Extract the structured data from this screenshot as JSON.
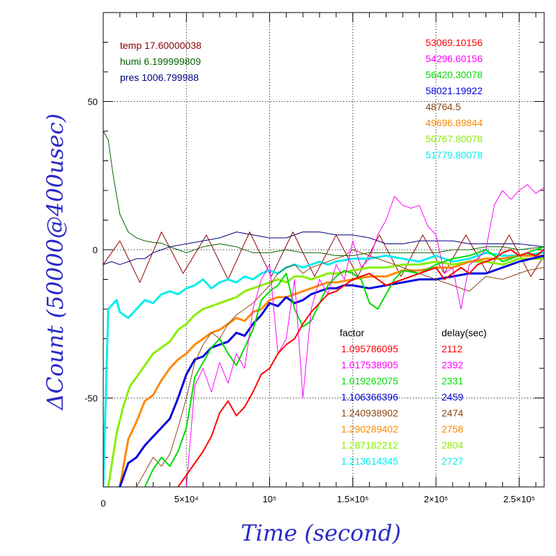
{
  "chart_data": {
    "type": "line",
    "xlabel": "Time (second)",
    "ylabel": "ΔCount (50000@400usec)",
    "xlim": [
      0,
      265000
    ],
    "ylim": [
      -80,
      80
    ],
    "grid": true,
    "x_ticks": [
      {
        "value": 0,
        "label": "0"
      },
      {
        "value": 50000,
        "label": "5×10⁴"
      },
      {
        "value": 100000,
        "label": "10⁵"
      },
      {
        "value": 150000,
        "label": "1.5×10⁵"
      },
      {
        "value": 200000,
        "label": "2×10⁵"
      },
      {
        "value": 250000,
        "label": "2.5×10⁵"
      }
    ],
    "y_ticks": [
      {
        "value": -50,
        "label": "-50"
      },
      {
        "value": 0,
        "label": "0"
      },
      {
        "value": 50,
        "label": "50"
      }
    ],
    "env_legend": [
      {
        "label": "temp 17.60000038",
        "color": "#8b0000"
      },
      {
        "label": "humi 6.199999809",
        "color": "#006400"
      },
      {
        "label": "pres 1006.799988",
        "color": "#000080"
      }
    ],
    "series_legend": [
      {
        "label": "53069.10156",
        "color": "#ff0000"
      },
      {
        "label": "54296.60156",
        "color": "#ff00ff"
      },
      {
        "label": "56420.30078",
        "color": "#00dd00"
      },
      {
        "label": "58021.19922",
        "color": "#0000dd"
      },
      {
        "label": "48764.5",
        "color": "#8b4513"
      },
      {
        "label": "49696.89844",
        "color": "#ff8800"
      },
      {
        "label": "50767.80078",
        "color": "#88ee00"
      },
      {
        "label": "51779.80078",
        "color": "#00eeee"
      }
    ],
    "table_headers": {
      "factor": "factor",
      "delay": "delay(sec)"
    },
    "table_rows": [
      {
        "factor": "1.095786095",
        "delay": "2112",
        "color": "#ff0000"
      },
      {
        "factor": "1.017538905",
        "delay": "2392",
        "color": "#ff00ff"
      },
      {
        "factor": "1.019262075",
        "delay": "2331",
        "color": "#00dd00"
      },
      {
        "factor": "1.106366396",
        "delay": "2459",
        "color": "#0000dd"
      },
      {
        "factor": "1.240938902",
        "delay": "2474",
        "color": "#8b4513"
      },
      {
        "factor": "1.290289402",
        "delay": "2758",
        "color": "#ff8800"
      },
      {
        "factor": "1.287182212",
        "delay": "2804",
        "color": "#88ee00"
      },
      {
        "factor": "1.213614345",
        "delay": "2727",
        "color": "#00eeee"
      }
    ],
    "series": [
      {
        "color": "#006400",
        "width": 1,
        "x": [
          0,
          3000,
          6000,
          10000,
          15000,
          20000,
          25000,
          30000,
          35000,
          40000,
          50000,
          60000,
          70000,
          80000,
          90000,
          100000,
          110000,
          120000,
          130000,
          140000,
          150000,
          160000,
          170000,
          180000,
          190000,
          200000,
          210000,
          220000,
          230000,
          240000,
          250000,
          265000
        ],
        "y": [
          40,
          37,
          25,
          12,
          6,
          4,
          3,
          2.5,
          2.2,
          1,
          -1,
          1,
          2,
          1,
          -1,
          -1,
          0,
          -1,
          -1,
          -2,
          -2,
          -1,
          -1,
          -1,
          -1,
          -1,
          0,
          0,
          1,
          1,
          0,
          1
        ]
      },
      {
        "color": "#000080",
        "width": 1,
        "x": [
          0,
          5000,
          10000,
          15000,
          20000,
          25000,
          30000,
          35000,
          40000,
          50000,
          60000,
          70000,
          80000,
          90000,
          100000,
          110000,
          120000,
          130000,
          140000,
          150000,
          160000,
          170000,
          180000,
          190000,
          200000,
          210000,
          220000,
          230000,
          240000,
          250000,
          265000
        ],
        "y": [
          -5,
          -4,
          -5,
          -4,
          -3,
          -3,
          -1,
          0,
          1,
          2,
          3,
          4,
          6,
          5,
          4,
          4,
          6,
          6,
          5,
          5,
          4,
          2,
          2,
          3,
          3,
          3,
          2,
          2,
          2,
          2,
          1
        ]
      },
      {
        "color": "#8b0000",
        "width": 1,
        "x": [
          0,
          10000,
          22000,
          35000,
          48000,
          62000,
          75000,
          88000,
          101000,
          114000,
          127000,
          140000,
          153000,
          166000,
          179000,
          192000,
          205000,
          218000,
          231000,
          244000,
          257000,
          265000
        ],
        "y": [
          -5,
          3,
          -11,
          6,
          -8,
          5,
          -10,
          6,
          -9,
          6,
          -9,
          5,
          -9,
          5,
          -9,
          5,
          -8,
          5,
          -8,
          5,
          -9,
          -2
        ]
      },
      {
        "color": "#00eeee",
        "width": 3,
        "x": [
          0,
          3000,
          8000,
          10000,
          15000,
          20000,
          25000,
          30000,
          35000,
          40000,
          45000,
          50000,
          55000,
          60000,
          65000,
          70000,
          75000,
          80000,
          85000,
          90000,
          95000,
          100000,
          105000,
          110000,
          115000,
          120000,
          125000,
          130000,
          135000,
          140000,
          150000,
          160000,
          170000,
          180000,
          190000,
          200000,
          210000,
          220000,
          230000,
          240000,
          250000,
          265000
        ],
        "y": [
          -80,
          -20,
          -17,
          -21,
          -23,
          -20,
          -17,
          -18,
          -15,
          -14,
          -15,
          -13,
          -12,
          -10,
          -13,
          -11,
          -10,
          -11,
          -9,
          -10,
          -8,
          -7,
          -8,
          -6,
          -5,
          -6,
          -5,
          -4,
          -5,
          -4,
          -3,
          -3,
          -2,
          -3,
          -4,
          -2,
          -4,
          -3,
          -1,
          -2,
          -2,
          -1
        ]
      },
      {
        "color": "#88ee00",
        "width": 3,
        "x": [
          3000,
          8000,
          12000,
          16000,
          20000,
          25000,
          30000,
          35000,
          40000,
          45000,
          50000,
          55000,
          60000,
          65000,
          70000,
          75000,
          80000,
          85000,
          90000,
          95000,
          100000,
          105000,
          110000,
          115000,
          120000,
          125000,
          130000,
          135000,
          140000,
          150000,
          160000,
          170000,
          180000,
          190000,
          200000,
          210000,
          220000,
          230000,
          240000,
          250000,
          265000
        ],
        "y": [
          -80,
          -62,
          -53,
          -46,
          -43,
          -39,
          -35,
          -33,
          -31,
          -27,
          -25,
          -22,
          -20,
          -19,
          -18,
          -17,
          -16,
          -14,
          -13,
          -12,
          -11,
          -10,
          -11,
          -9,
          -9,
          -10,
          -9,
          -8,
          -8,
          -7,
          -6,
          -6,
          -5,
          -5,
          -4,
          -5,
          -4,
          -4,
          -5,
          -3,
          -3
        ]
      },
      {
        "color": "#ff8800",
        "width": 3,
        "x": [
          10000,
          15000,
          20000,
          25000,
          30000,
          35000,
          40000,
          45000,
          50000,
          55000,
          60000,
          65000,
          70000,
          75000,
          80000,
          85000,
          90000,
          95000,
          100000,
          105000,
          110000,
          115000,
          120000,
          125000,
          130000,
          135000,
          140000,
          150000,
          160000,
          170000,
          180000,
          190000,
          200000,
          210000,
          220000,
          230000,
          240000,
          250000,
          265000
        ],
        "y": [
          -80,
          -64,
          -58,
          -51,
          -49,
          -44,
          -40,
          -37,
          -35,
          -32,
          -30,
          -28,
          -27,
          -25,
          -23,
          -24,
          -21,
          -20,
          -17,
          -16,
          -16,
          -15,
          -14,
          -13,
          -12,
          -11,
          -11,
          -10,
          -9,
          -9,
          -7,
          -7,
          -6,
          -6,
          -4,
          -3,
          -3,
          -2,
          -2
        ]
      },
      {
        "color": "#0000dd",
        "width": 3,
        "x": [
          10000,
          15000,
          20000,
          25000,
          30000,
          35000,
          40000,
          45000,
          50000,
          55000,
          60000,
          65000,
          70000,
          75000,
          80000,
          85000,
          90000,
          95000,
          100000,
          105000,
          110000,
          115000,
          120000,
          125000,
          130000,
          135000,
          140000,
          145000,
          150000,
          160000,
          170000,
          180000,
          190000,
          200000,
          210000,
          220000,
          230000,
          240000,
          250000,
          265000
        ],
        "y": [
          -80,
          -72,
          -70,
          -66,
          -63,
          -60,
          -57,
          -50,
          -42,
          -37,
          -36,
          -33,
          -32,
          -31,
          -28,
          -29,
          -25,
          -22,
          -18,
          -19,
          -16,
          -18,
          -17,
          -15,
          -14,
          -13,
          -13,
          -12,
          -12,
          -13,
          -12,
          -11,
          -10,
          -10,
          -9,
          -8,
          -8,
          -6,
          -4,
          -2
        ]
      },
      {
        "color": "#8b4513",
        "width": 1,
        "x": [
          20000,
          25000,
          30000,
          35000,
          40000,
          45000,
          50000,
          55000,
          60000,
          65000,
          70000,
          75000,
          80000,
          85000,
          90000,
          95000,
          100000,
          105000,
          110000,
          115000,
          120000,
          125000,
          130000,
          135000,
          140000,
          145000,
          150000,
          160000,
          170000,
          180000,
          190000,
          200000,
          210000,
          220000,
          230000,
          240000,
          250000,
          255000,
          265000
        ],
        "y": [
          -80,
          -75,
          -70,
          -73,
          -69,
          -60,
          -50,
          -38,
          -32,
          -28,
          -30,
          -25,
          -22,
          -20,
          -18,
          -15,
          -12,
          -8,
          -6,
          -5,
          -8,
          -6,
          -5,
          -4,
          -3,
          -2,
          0,
          -2,
          -4,
          -6,
          -8,
          -10,
          -12,
          -14,
          -9,
          -10,
          -8,
          -7,
          -6
        ]
      },
      {
        "color": "#00dd00",
        "width": 2,
        "x": [
          25000,
          30000,
          35000,
          40000,
          45000,
          50000,
          55000,
          60000,
          65000,
          70000,
          75000,
          80000,
          85000,
          90000,
          95000,
          100000,
          105000,
          110000,
          115000,
          120000,
          125000,
          130000,
          135000,
          140000,
          145000,
          150000,
          155000,
          160000,
          165000,
          170000,
          175000,
          180000,
          190000,
          200000,
          210000,
          220000,
          230000,
          240000,
          250000,
          265000
        ],
        "y": [
          -80,
          -74,
          -70,
          -73,
          -68,
          -60,
          -43,
          -38,
          -33,
          -30,
          -35,
          -39,
          -33,
          -27,
          -17,
          -14,
          -12,
          -8,
          -20,
          -26,
          -24,
          -18,
          -12,
          -9,
          -7,
          -8,
          -10,
          -18,
          -20,
          -15,
          -10,
          -7,
          -8,
          -5,
          -3,
          -2,
          0,
          -4,
          -2,
          1
        ]
      },
      {
        "color": "#ff00ff",
        "width": 1,
        "x": [
          50000,
          55000,
          60000,
          65000,
          70000,
          75000,
          80000,
          85000,
          90000,
          95000,
          100000,
          105000,
          110000,
          115000,
          120000,
          125000,
          130000,
          135000,
          140000,
          145000,
          150000,
          155000,
          160000,
          165000,
          170000,
          175000,
          180000,
          185000,
          190000,
          195000,
          200000,
          205000,
          210000,
          215000,
          220000,
          225000,
          230000,
          235000,
          240000,
          245000,
          250000,
          255000,
          260000,
          265000
        ],
        "y": [
          -80,
          -46,
          -40,
          -48,
          -38,
          -45,
          -35,
          -40,
          -20,
          -10,
          -5,
          -35,
          -30,
          -10,
          -50,
          -20,
          -10,
          -15,
          -5,
          -10,
          3,
          -6,
          -3,
          5,
          10,
          18,
          15,
          14,
          15,
          8,
          5,
          -8,
          -6,
          -20,
          -5,
          -3,
          0,
          15,
          20,
          17,
          20,
          22,
          19,
          21
        ]
      },
      {
        "color": "#ff0000",
        "width": 2,
        "x": [
          45000,
          50000,
          55000,
          60000,
          65000,
          70000,
          75000,
          80000,
          85000,
          90000,
          95000,
          100000,
          105000,
          110000,
          115000,
          120000,
          125000,
          130000,
          135000,
          140000,
          145000,
          150000,
          160000,
          170000,
          180000,
          190000,
          200000,
          205000,
          210000,
          215000,
          220000,
          225000,
          230000,
          235000,
          240000,
          245000,
          250000,
          255000,
          260000,
          265000
        ],
        "y": [
          -80,
          -76,
          -72,
          -68,
          -63,
          -55,
          -51,
          -56,
          -53,
          -48,
          -42,
          -40,
          -35,
          -32,
          -30,
          -25,
          -21,
          -18,
          -15,
          -14,
          -12,
          -10,
          -8,
          -12,
          -10,
          -8,
          -6,
          -10,
          -8,
          -6,
          -8,
          -5,
          -4,
          -3,
          -1,
          0,
          -2,
          -1,
          -2,
          0
        ]
      }
    ]
  }
}
